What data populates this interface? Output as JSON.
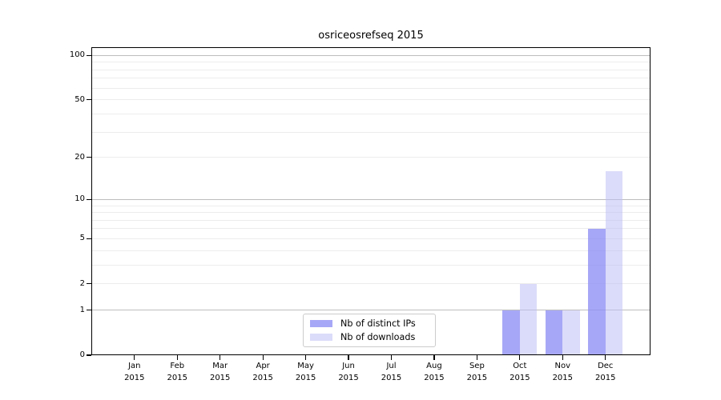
{
  "chart_data": {
    "type": "bar",
    "title": "osriceosrefseq 2015",
    "categories": [
      "Jan 2015",
      "Feb 2015",
      "Mar 2015",
      "Apr 2015",
      "May 2015",
      "Jun 2015",
      "Jul 2015",
      "Aug 2015",
      "Sep 2015",
      "Oct 2015",
      "Nov 2015",
      "Dec 2015"
    ],
    "series": [
      {
        "name": "Nb of distinct IPs",
        "color": "rgba(145,145,245,0.8)",
        "values": [
          0,
          0,
          0,
          0,
          0,
          0,
          0,
          0,
          0,
          1,
          1,
          6
        ]
      },
      {
        "name": "Nb of downloads",
        "color": "rgba(190,190,245,0.55)",
        "values": [
          0,
          0,
          0,
          0,
          0,
          0,
          0,
          0,
          0,
          2,
          1,
          16
        ]
      }
    ],
    "yscale": "log1p",
    "ylim": [
      0,
      113
    ],
    "yticks": [
      0,
      1,
      2,
      5,
      10,
      20,
      50,
      100
    ],
    "major_gridlines": [
      1,
      10,
      100
    ],
    "minor_gridlines": [
      2,
      3,
      4,
      5,
      6,
      7,
      8,
      9,
      20,
      30,
      40,
      50,
      60,
      70,
      80,
      90
    ],
    "legend_position": "bottom-center",
    "grid": "on",
    "xlabel": "",
    "ylabel": ""
  },
  "colors": {
    "major_grid": "#bdbdbd",
    "minor_grid": "#ececec",
    "axis": "#000000",
    "background": "#ffffff",
    "legend_border": "#cccccc"
  }
}
